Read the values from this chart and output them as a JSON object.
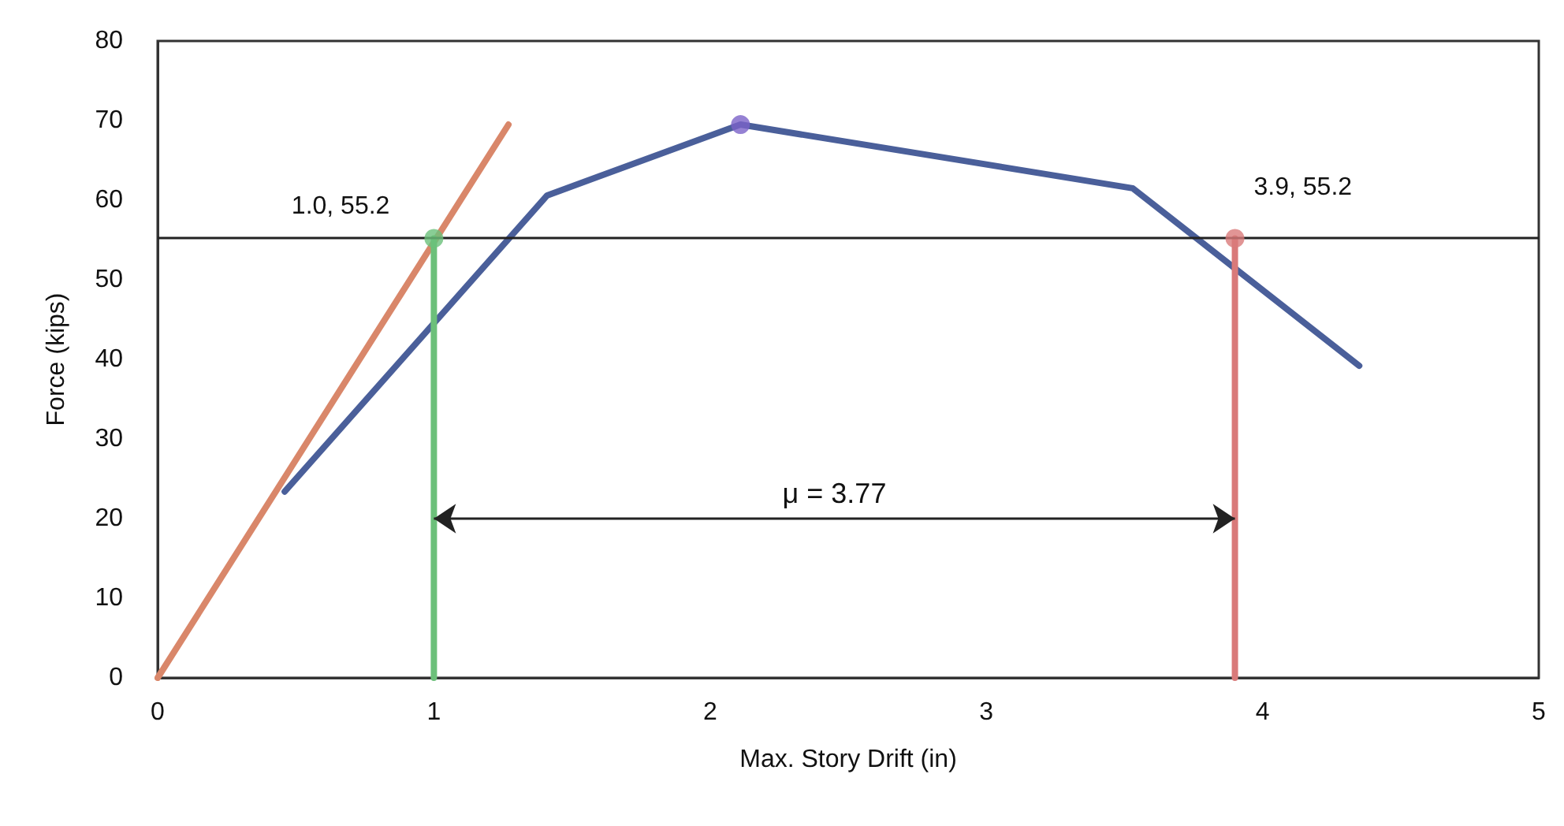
{
  "chart_data": {
    "type": "line",
    "xlabel": "Max. Story Drift (in)",
    "ylabel": "Force (kips)",
    "xlim": [
      0,
      5
    ],
    "ylim": [
      0,
      80
    ],
    "xticks": [
      0,
      1,
      2,
      3,
      4,
      5
    ],
    "yticks": [
      0,
      10,
      20,
      30,
      40,
      50,
      60,
      70,
      80
    ],
    "grid": false,
    "line_style": "solid",
    "series": [
      {
        "color": "#d9876a",
        "x": [
          0,
          1.27
        ],
        "values": [
          0,
          69.5
        ]
      },
      {
        "color": "#4a5f9a",
        "x": [
          0.46,
          1.41,
          2.11,
          3.53,
          4.35
        ],
        "values": [
          23.4,
          60.6,
          69.5,
          61.5,
          39.2
        ]
      },
      {
        "color": "#6cc07a",
        "x": [
          1.0,
          1.0
        ],
        "values": [
          0,
          55.2
        ]
      },
      {
        "color": "#d97a7a",
        "x": [
          3.9,
          3.9
        ],
        "values": [
          0,
          55.2
        ]
      },
      {
        "type": "scatter",
        "marker": "circle",
        "x": [
          1.0,
          2.11,
          3.9
        ],
        "values": [
          55.2,
          69.5,
          55.2
        ],
        "colors": [
          "#6cc07a",
          "#7b62c8",
          "#d97a7a"
        ]
      }
    ],
    "ref_lines": [
      {
        "axis": "y",
        "value": 55.2,
        "color": "#222222"
      }
    ],
    "annotations": [
      {
        "text": "1.0, 55.2",
        "x": 1.0,
        "y": 55.2
      },
      {
        "text": "3.9, 55.2",
        "x": 3.9,
        "y": 55.2
      },
      "μ = 3.77"
    ]
  }
}
